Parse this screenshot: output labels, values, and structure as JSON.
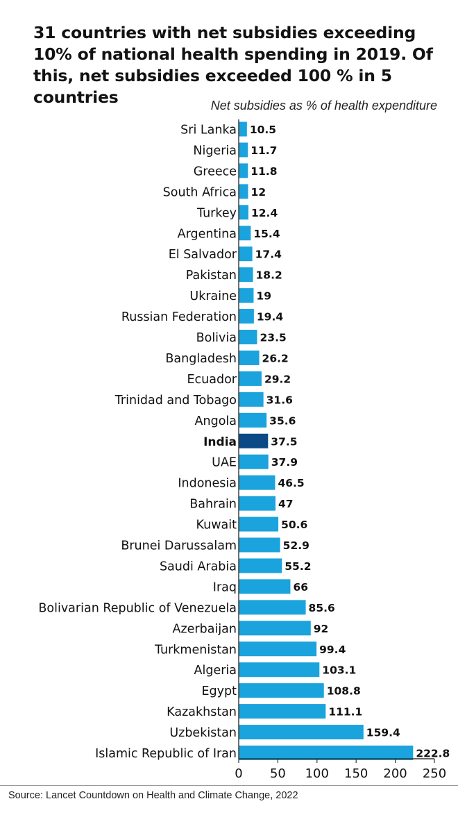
{
  "header": {
    "title": "31 countries with net subsidies exceeding 10% of national health spending in 2019. Of this, net subsidies exceeded 100 % in 5 countries",
    "subtitle": "Net subsidies as % of health expenditure"
  },
  "footer": {
    "source": "Source: Lancet Countdown on Health and Climate Change, 2022"
  },
  "colors": {
    "bar": "#1aa3dc",
    "highlight_bar": "#0b4a85",
    "text": "#111111"
  },
  "chart_data": {
    "type": "bar",
    "orientation": "horizontal",
    "title": "31 countries with net subsidies exceeding 10% of national health spending in 2019. Of this, net subsidies exceeded 100 % in 5 countries",
    "xlabel": "Net subsidies as % of health expenditure",
    "ylabel": "",
    "xlim": [
      0,
      250
    ],
    "xticks": [
      0,
      50,
      100,
      150,
      200,
      250
    ],
    "grid": false,
    "highlight": "India",
    "categories": [
      "Sri Lanka",
      "Nigeria",
      "Greece",
      "South Africa",
      "Turkey",
      "Argentina",
      "El Salvador",
      "Pakistan",
      "Ukraine",
      "Russian Federation",
      "Bolivia",
      "Bangladesh",
      "Ecuador",
      "Trinidad and Tobago",
      "Angola",
      "India",
      "UAE",
      "Indonesia",
      "Bahrain",
      "Kuwait",
      "Brunei Darussalam",
      "Saudi Arabia",
      "Iraq",
      "Bolivarian Republic of Venezuela",
      "Azerbaijan",
      "Turkmenistan",
      "Algeria",
      "Egypt",
      "Kazakhstan",
      "Uzbekistan",
      "Islamic Republic of Iran"
    ],
    "values": [
      10.5,
      11.7,
      11.8,
      12,
      12.4,
      15.4,
      17.4,
      18.2,
      19,
      19.4,
      23.5,
      26.2,
      29.2,
      31.6,
      35.6,
      37.5,
      37.9,
      46.5,
      47,
      50.6,
      52.9,
      55.2,
      66,
      85.6,
      92,
      99.4,
      103.1,
      108.8,
      111.1,
      159.4,
      222.8
    ],
    "value_labels": [
      "10.5",
      "11.7",
      "11.8",
      "12",
      "12.4",
      "15.4",
      "17.4",
      "18.2",
      "19",
      "19.4",
      "23.5",
      "26.2",
      "29.2",
      "31.6",
      "35.6",
      "37.5",
      "37.9",
      "46.5",
      "47",
      "50.6",
      "52.9",
      "55.2",
      "66",
      "85.6",
      "92",
      "99.4",
      "103.1",
      "108.8",
      "111.1",
      "159.4",
      "222.8"
    ]
  }
}
